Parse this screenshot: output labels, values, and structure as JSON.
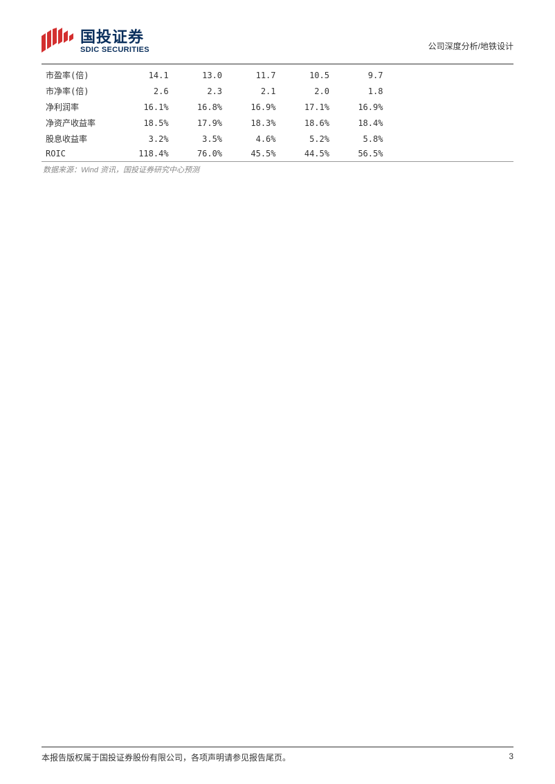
{
  "header": {
    "logo_cn": "国投证券",
    "logo_en": "SDIC SECURITIES",
    "category": "公司深度分析/地铁设计"
  },
  "table": {
    "rows": [
      {
        "label": "市盈率(倍)",
        "c1": "14.1",
        "c2": "13.0",
        "c3": "11.7",
        "c4": "10.5",
        "c5": "9.7"
      },
      {
        "label": "市净率(倍)",
        "c1": "2.6",
        "c2": "2.3",
        "c3": "2.1",
        "c4": "2.0",
        "c5": "1.8"
      },
      {
        "label": "净利润率",
        "c1": "16.1%",
        "c2": "16.8%",
        "c3": "16.9%",
        "c4": "17.1%",
        "c5": "16.9%"
      },
      {
        "label": "净资产收益率",
        "c1": "18.5%",
        "c2": "17.9%",
        "c3": "18.3%",
        "c4": "18.6%",
        "c5": "18.4%"
      },
      {
        "label": "股息收益率",
        "c1": "3.2%",
        "c2": "3.5%",
        "c3": "4.6%",
        "c4": "5.2%",
        "c5": "5.8%"
      },
      {
        "label": "ROIC",
        "c1": "118.4%",
        "c2": "76.0%",
        "c3": "45.5%",
        "c4": "44.5%",
        "c5": "56.5%"
      }
    ],
    "source": "数据来源：Wind 资讯，国投证券研究中心预测"
  },
  "footer": {
    "copyright": "本报告版权属于国投证券股份有限公司，各项声明请参见报告尾页。",
    "page_number": "3"
  },
  "colors": {
    "logo_red": "#d32f2f",
    "logo_navy": "#0a2f5c",
    "text": "#333333",
    "muted": "#888888",
    "border": "#333333"
  }
}
